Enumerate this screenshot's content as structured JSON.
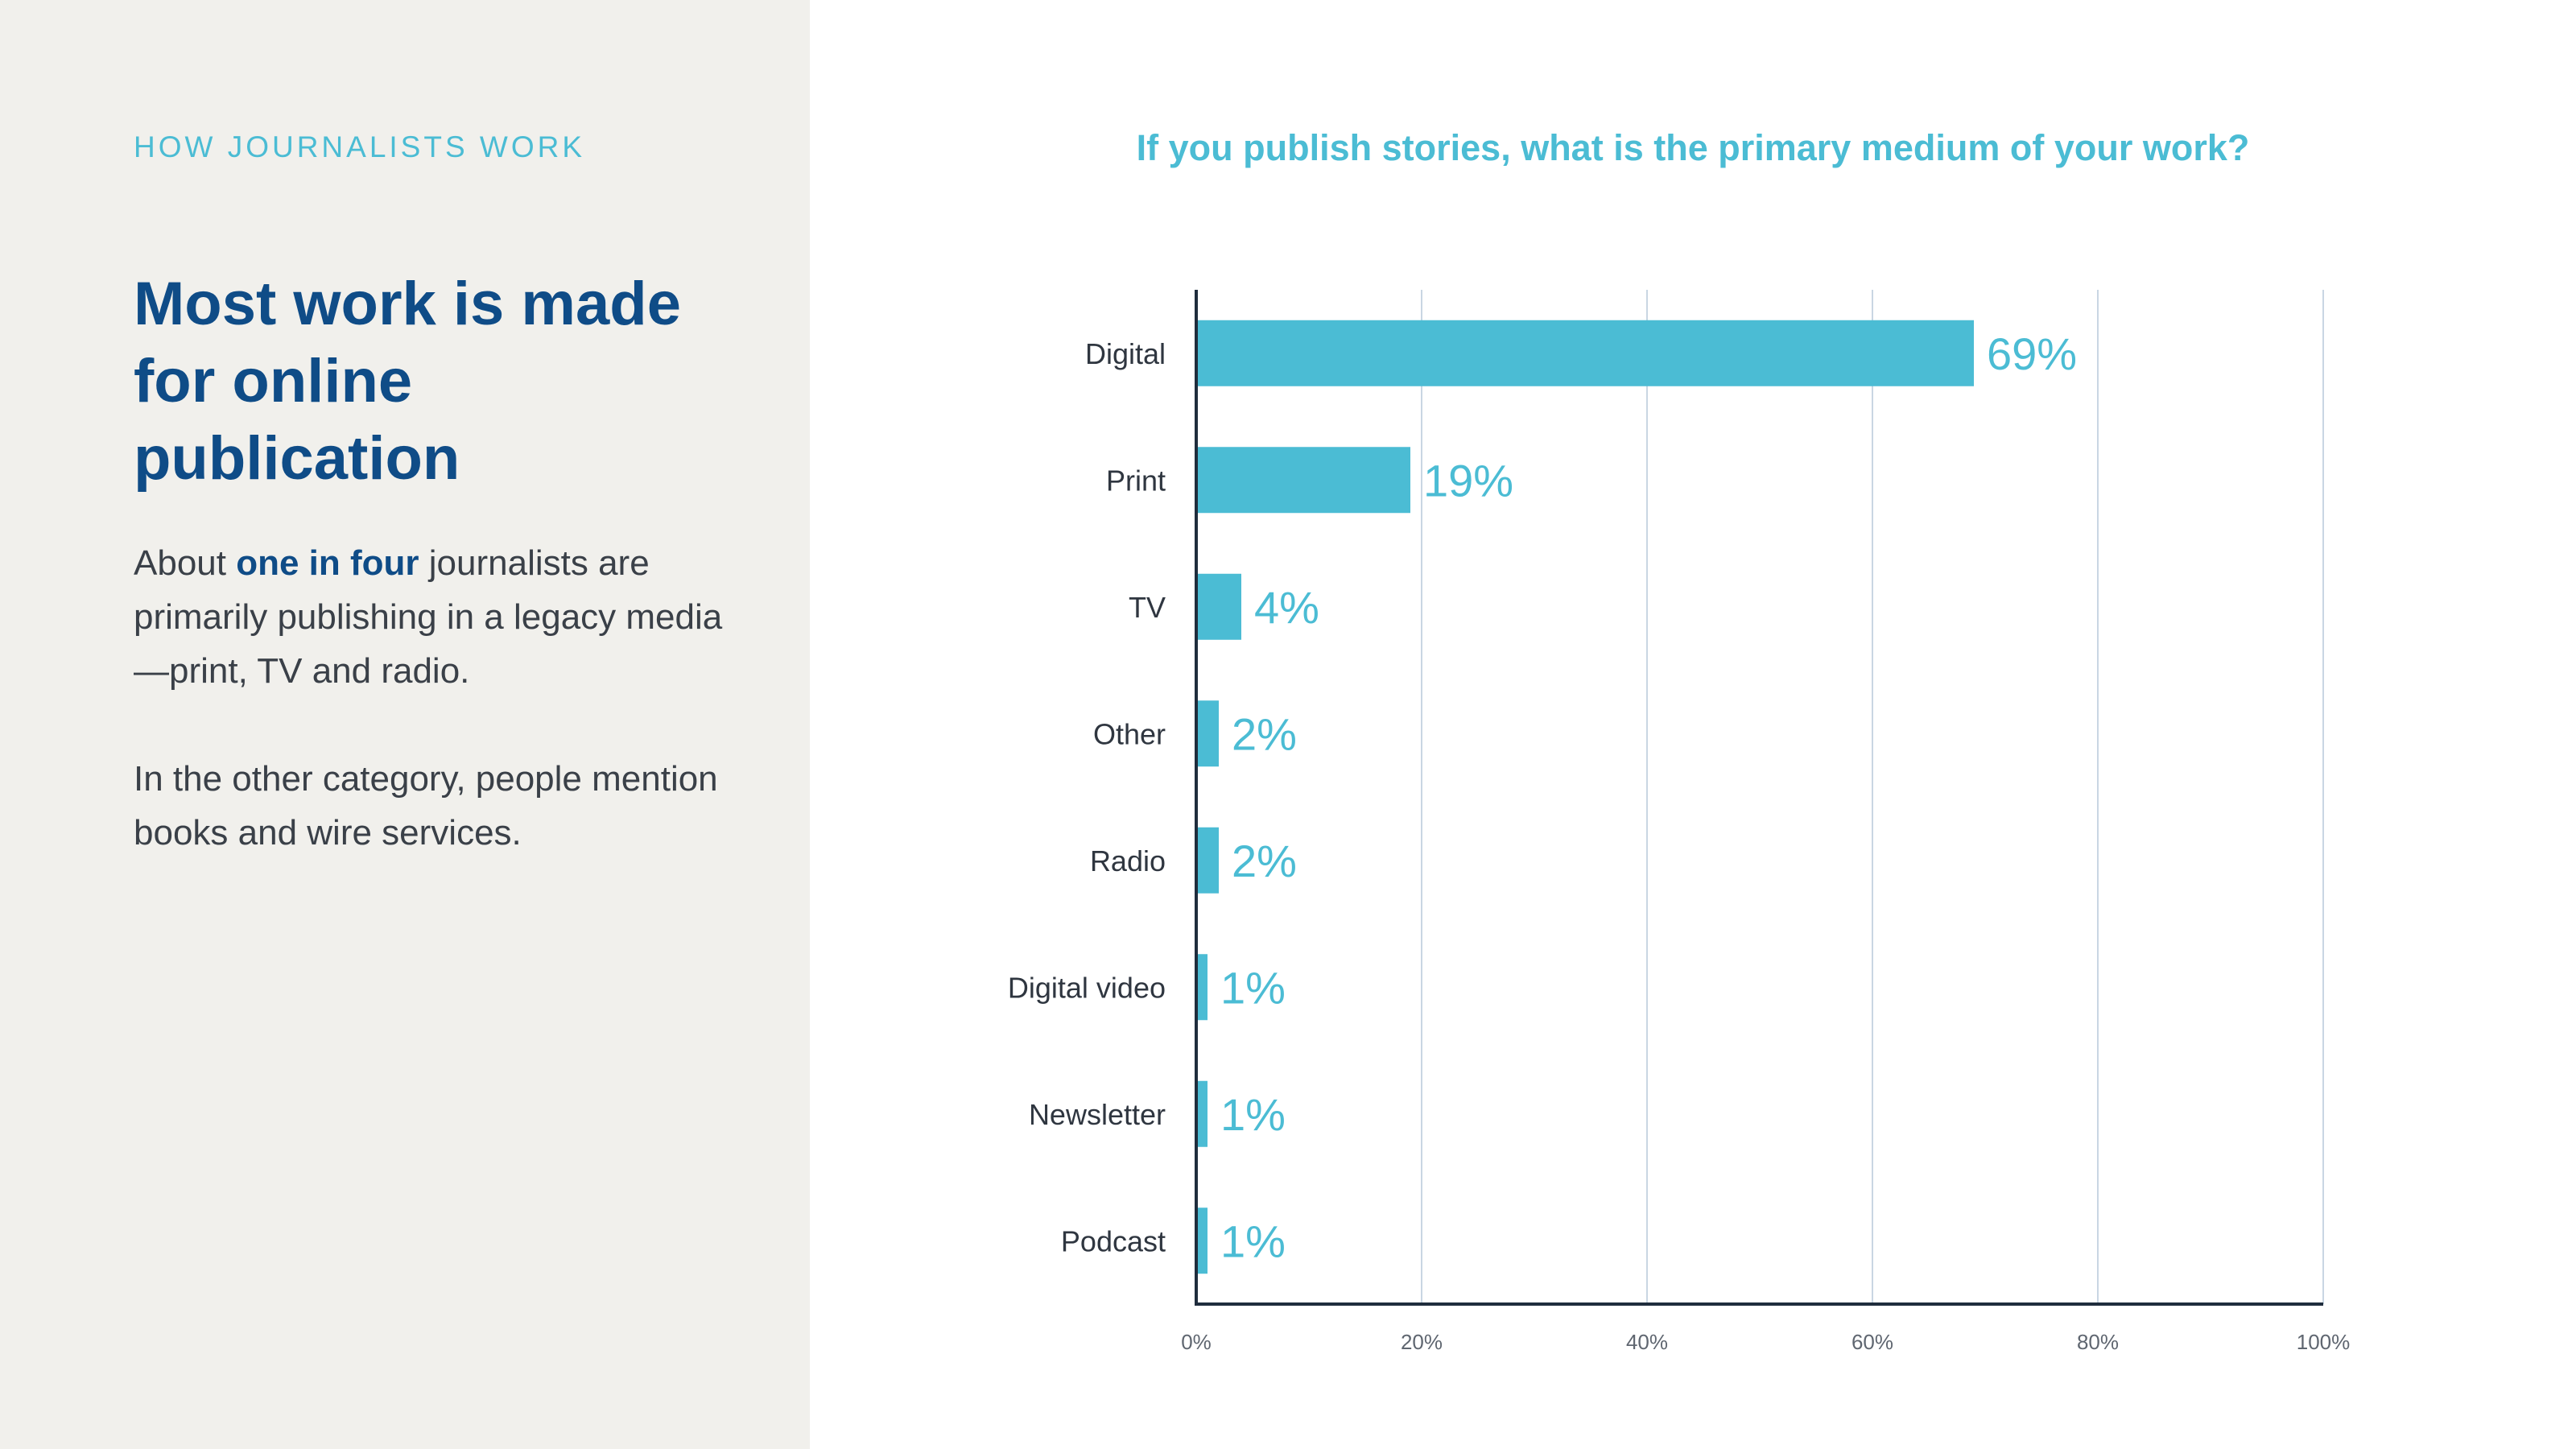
{
  "left": {
    "eyebrow": "HOW JOURNALISTS WORK",
    "headline": "Most work is made for online publication",
    "paragraph1": {
      "before": "About ",
      "highlight": "one in four",
      "after": " journalists are primarily publishing in a legacy media—print, TV and radio."
    },
    "paragraph2": "In the other category, people mention books and wire services."
  },
  "colors": {
    "accent": "#4bbcd4",
    "headline": "#0f4c87",
    "panel_bg": "#f1f0ec",
    "grid": "#c9d6e3",
    "axis": "#1f2d3d"
  },
  "chart_data": {
    "type": "bar",
    "orientation": "horizontal",
    "title": "If you publish stories, what is the primary medium of your work?",
    "categories": [
      "Digital",
      "Print",
      "TV",
      "Other",
      "Radio",
      "Digital video",
      "Newsletter",
      "Podcast"
    ],
    "values": [
      69,
      19,
      4,
      2,
      2,
      1,
      1,
      1
    ],
    "value_labels": [
      "69%",
      "19%",
      "4%",
      "2%",
      "2%",
      "1%",
      "1%",
      "1%"
    ],
    "xlim": [
      0,
      100
    ],
    "xticks": [
      0,
      20,
      40,
      60,
      80,
      100
    ],
    "xtick_labels": [
      "0%",
      "20%",
      "40%",
      "60%",
      "80%",
      "100%"
    ],
    "grid": true
  }
}
